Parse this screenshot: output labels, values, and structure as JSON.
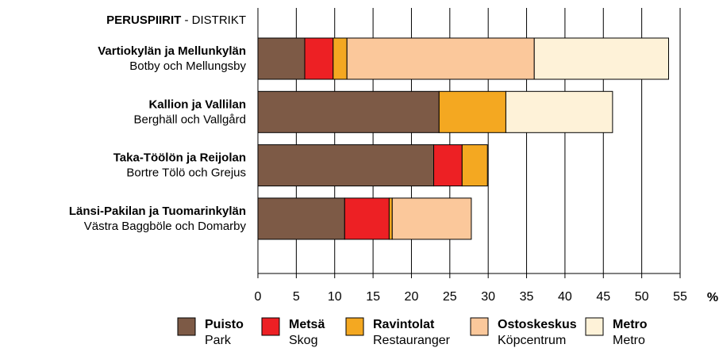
{
  "chart_data": {
    "type": "stacked-bar-horizontal",
    "title": {
      "bold": "PERUSPIIRIT",
      "rest": "- DISTRIKT"
    },
    "categories": [
      {
        "fi": "Vartiokylän ja Mellunkylän",
        "sv": "Botby och Mellungsby"
      },
      {
        "fi": "Kallion ja Vallilan",
        "sv": "Berghäll och Vallgård"
      },
      {
        "fi": "Taka-Töölön ja Reijolan",
        "sv": "Bortre Tölö och Grejus"
      },
      {
        "fi": "Länsi-Pakilan ja Tuomarinkylän",
        "sv": "Västra Baggböle och Domarby"
      }
    ],
    "series": [
      {
        "name": "Puisto",
        "name_sv": "Park",
        "color": "#7d5a46",
        "values": [
          6.1,
          23.6,
          22.9,
          11.3
        ]
      },
      {
        "name": "Metsä",
        "name_sv": "Skog",
        "color": "#ed2024",
        "values": [
          3.7,
          0,
          3.7,
          5.8
        ]
      },
      {
        "name": "Ravintolat",
        "name_sv": "Restauranger",
        "color": "#f4a821",
        "values": [
          1.8,
          8.7,
          3.3,
          0.4
        ]
      },
      {
        "name": "Ostoskeskus",
        "name_sv": "Köpcentrum",
        "color": "#fbc89b",
        "values": [
          24.4,
          0,
          0,
          10.3
        ]
      },
      {
        "name": "Metro",
        "name_sv": "Metro",
        "color": "#fef2d8",
        "values": [
          17.5,
          13.9,
          0,
          0
        ]
      }
    ],
    "xlim": [
      0,
      55
    ],
    "xticks": [
      0,
      5,
      10,
      15,
      20,
      25,
      30,
      35,
      40,
      45,
      50,
      55
    ],
    "x_unit": "%",
    "grid": true
  }
}
